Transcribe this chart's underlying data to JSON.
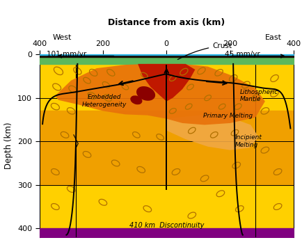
{
  "title": "Distance from axis (km)",
  "depth_label": "Depth (km)",
  "rate_west": "101 mm/yr",
  "rate_east": "45 mm/yr",
  "label_crust": "Crust",
  "label_lith": "Lithospheric\nMantle",
  "label_emb": "Embedded\nHeterogeneity",
  "label_prim": "Primary Melting",
  "label_inc": "Incipient\nMelting",
  "label_disc": "410 km  Discontinuity",
  "color_ocean": "#29B6E8",
  "color_dark_crust": "#1A0A00",
  "color_green_crust": "#5CB85C",
  "color_yellow_mantle": "#FFD000",
  "color_orange_melt": "#E8720A",
  "color_red_primary": "#C01800",
  "color_dark_red": "#8B0000",
  "color_purple_disc": "#800080",
  "color_orange_band": "#F0A000",
  "ellipse_stroke": "#B07000"
}
